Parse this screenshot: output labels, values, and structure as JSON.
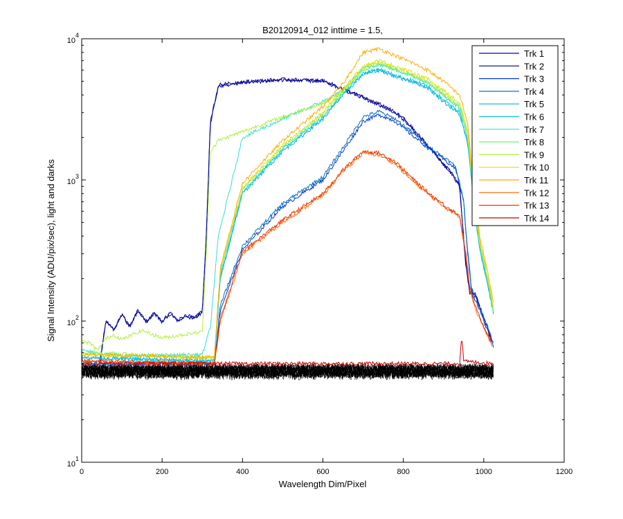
{
  "chart_data": {
    "type": "line",
    "title": "B20120914_012 inttime = 1.5,",
    "xlabel": "Wavelength Dim/Pixel",
    "ylabel": "Signal Intensity (ADU/pix/sec), light and darks",
    "xlim": [
      0,
      1200
    ],
    "ylim": [
      10,
      10000
    ],
    "yscale": "log",
    "x_ticks": [
      "0",
      "200",
      "400",
      "600",
      "800",
      "1000",
      "1200"
    ],
    "y_ticks": [
      {
        "base": "10",
        "exp": "1"
      },
      {
        "base": "10",
        "exp": "2"
      },
      {
        "base": "10",
        "exp": "3"
      },
      {
        "base": "10",
        "exp": "4"
      }
    ],
    "grid": false,
    "legend_position": "top-right",
    "series": [
      {
        "name": "Trk 1",
        "color": "#0000aa",
        "dark": 44,
        "light": [
          [
            45,
            49
          ],
          [
            60,
            100
          ],
          [
            80,
            88
          ],
          [
            100,
            110
          ],
          [
            120,
            92
          ],
          [
            140,
            118
          ],
          [
            160,
            100
          ],
          [
            180,
            112
          ],
          [
            200,
            100
          ],
          [
            220,
            114
          ],
          [
            240,
            100
          ],
          [
            260,
            110
          ],
          [
            280,
            106
          ],
          [
            300,
            115
          ],
          [
            310,
            400
          ],
          [
            320,
            2500
          ],
          [
            340,
            4600
          ],
          [
            400,
            4900
          ],
          [
            500,
            5100
          ],
          [
            600,
            5000
          ],
          [
            620,
            4700
          ],
          [
            640,
            4500
          ],
          [
            700,
            3800
          ],
          [
            760,
            3200
          ],
          [
            800,
            2700
          ],
          [
            840,
            2000
          ],
          [
            880,
            1500
          ],
          [
            920,
            1100
          ],
          [
            940,
            900
          ],
          [
            955,
            250
          ],
          [
            965,
            160
          ],
          [
            980,
            150
          ],
          [
            1000,
            100
          ],
          [
            1020,
            72
          ]
        ]
      },
      {
        "name": "Trk 2",
        "color": "#000090",
        "dark": 43,
        "light": [
          [
            45,
            49
          ],
          [
            60,
            102
          ],
          [
            80,
            86
          ],
          [
            100,
            112
          ],
          [
            120,
            90
          ],
          [
            140,
            120
          ],
          [
            160,
            98
          ],
          [
            180,
            114
          ],
          [
            200,
            98
          ],
          [
            220,
            112
          ],
          [
            240,
            102
          ],
          [
            260,
            108
          ],
          [
            280,
            104
          ],
          [
            300,
            118
          ],
          [
            310,
            420
          ],
          [
            320,
            2600
          ],
          [
            340,
            4700
          ],
          [
            400,
            4950
          ],
          [
            500,
            5150
          ],
          [
            600,
            5050
          ],
          [
            620,
            4800
          ],
          [
            640,
            4550
          ],
          [
            700,
            3850
          ],
          [
            760,
            3250
          ],
          [
            800,
            2750
          ],
          [
            840,
            2050
          ],
          [
            880,
            1520
          ],
          [
            920,
            1120
          ],
          [
            940,
            920
          ],
          [
            955,
            260
          ],
          [
            965,
            165
          ],
          [
            980,
            155
          ],
          [
            1000,
            105
          ],
          [
            1020,
            74
          ]
        ]
      },
      {
        "name": "Trk 3",
        "color": "#0033dd",
        "dark": 44,
        "light": [
          [
            0,
            50
          ],
          [
            330,
            50
          ],
          [
            345,
            120
          ],
          [
            400,
            320
          ],
          [
            500,
            650
          ],
          [
            600,
            1000
          ],
          [
            650,
            1600
          ],
          [
            700,
            2600
          ],
          [
            740,
            2900
          ],
          [
            780,
            2600
          ],
          [
            820,
            2100
          ],
          [
            860,
            1700
          ],
          [
            900,
            1400
          ],
          [
            930,
            1200
          ],
          [
            950,
            700
          ],
          [
            960,
            300
          ],
          [
            970,
            160
          ],
          [
            990,
            120
          ],
          [
            1010,
            90
          ],
          [
            1025,
            65
          ]
        ]
      },
      {
        "name": "Trk 4",
        "color": "#0070c0",
        "dark": 43,
        "light": [
          [
            0,
            50
          ],
          [
            330,
            50
          ],
          [
            345,
            130
          ],
          [
            400,
            340
          ],
          [
            500,
            680
          ],
          [
            600,
            1050
          ],
          [
            650,
            1700
          ],
          [
            700,
            2800
          ],
          [
            740,
            3050
          ],
          [
            780,
            2700
          ],
          [
            820,
            2200
          ],
          [
            860,
            1750
          ],
          [
            900,
            1450
          ],
          [
            930,
            1250
          ],
          [
            950,
            720
          ],
          [
            960,
            310
          ],
          [
            970,
            170
          ],
          [
            990,
            125
          ],
          [
            1010,
            92
          ],
          [
            1025,
            68
          ]
        ]
      },
      {
        "name": "Trk 5",
        "color": "#00aaee",
        "dark": 44,
        "light": [
          [
            0,
            55
          ],
          [
            330,
            52
          ],
          [
            345,
            200
          ],
          [
            400,
            800
          ],
          [
            500,
            1600
          ],
          [
            600,
            2700
          ],
          [
            650,
            4000
          ],
          [
            700,
            5600
          ],
          [
            740,
            6000
          ],
          [
            780,
            5400
          ],
          [
            820,
            5000
          ],
          [
            860,
            4500
          ],
          [
            900,
            3600
          ],
          [
            940,
            2900
          ],
          [
            960,
            1800
          ],
          [
            975,
            700
          ],
          [
            990,
            320
          ],
          [
            1010,
            180
          ],
          [
            1025,
            110
          ]
        ]
      },
      {
        "name": "Trk 6",
        "color": "#00c8d8",
        "dark": 44,
        "light": [
          [
            0,
            55
          ],
          [
            330,
            52
          ],
          [
            345,
            210
          ],
          [
            400,
            820
          ],
          [
            500,
            1650
          ],
          [
            600,
            2800
          ],
          [
            650,
            4100
          ],
          [
            700,
            5700
          ],
          [
            740,
            6100
          ],
          [
            780,
            5500
          ],
          [
            820,
            5100
          ],
          [
            860,
            4600
          ],
          [
            900,
            3700
          ],
          [
            940,
            3000
          ],
          [
            960,
            1900
          ],
          [
            975,
            720
          ],
          [
            990,
            330
          ],
          [
            1010,
            185
          ],
          [
            1025,
            112
          ]
        ]
      },
      {
        "name": "Trk 7",
        "color": "#30e0d0",
        "dark": 45,
        "light": [
          [
            0,
            62
          ],
          [
            100,
            56
          ],
          [
            300,
            58
          ],
          [
            320,
            90
          ],
          [
            340,
            400
          ],
          [
            400,
            2000
          ],
          [
            500,
            2700
          ],
          [
            600,
            3600
          ],
          [
            650,
            4300
          ],
          [
            700,
            6200
          ],
          [
            740,
            6600
          ],
          [
            780,
            6000
          ],
          [
            820,
            5500
          ],
          [
            860,
            4900
          ],
          [
            900,
            4000
          ],
          [
            940,
            3200
          ],
          [
            960,
            2000
          ],
          [
            975,
            750
          ],
          [
            990,
            340
          ],
          [
            1010,
            190
          ],
          [
            1025,
            112
          ]
        ]
      },
      {
        "name": "Trk 8",
        "color": "#70f080",
        "dark": 45,
        "light": [
          [
            0,
            60
          ],
          [
            330,
            55
          ],
          [
            345,
            220
          ],
          [
            400,
            850
          ],
          [
            500,
            1700
          ],
          [
            600,
            2900
          ],
          [
            650,
            4300
          ],
          [
            700,
            6000
          ],
          [
            740,
            6600
          ],
          [
            780,
            6100
          ],
          [
            820,
            5500
          ],
          [
            860,
            4900
          ],
          [
            900,
            4000
          ],
          [
            940,
            3300
          ],
          [
            960,
            2100
          ],
          [
            975,
            780
          ],
          [
            990,
            350
          ],
          [
            1010,
            195
          ],
          [
            1025,
            115
          ]
        ]
      },
      {
        "name": "Trk 9",
        "color": "#b0f040",
        "dark": 45,
        "light": [
          [
            0,
            72
          ],
          [
            20,
            70
          ],
          [
            40,
            62
          ],
          [
            60,
            75
          ],
          [
            80,
            80
          ],
          [
            100,
            74
          ],
          [
            150,
            86
          ],
          [
            200,
            76
          ],
          [
            250,
            80
          ],
          [
            300,
            84
          ],
          [
            310,
            300
          ],
          [
            320,
            1600
          ],
          [
            340,
            1900
          ],
          [
            400,
            2200
          ],
          [
            500,
            2800
          ],
          [
            600,
            3500
          ],
          [
            650,
            4200
          ],
          [
            700,
            6200
          ],
          [
            740,
            6800
          ],
          [
            780,
            6200
          ],
          [
            820,
            5600
          ],
          [
            860,
            5000
          ],
          [
            900,
            4100
          ],
          [
            940,
            3400
          ],
          [
            960,
            2100
          ],
          [
            975,
            800
          ],
          [
            990,
            360
          ],
          [
            1010,
            200
          ],
          [
            1025,
            118
          ]
        ]
      },
      {
        "name": "Trk 10",
        "color": "#e0e000",
        "dark": 45,
        "light": [
          [
            0,
            58
          ],
          [
            330,
            55
          ],
          [
            345,
            230
          ],
          [
            400,
            880
          ],
          [
            500,
            1750
          ],
          [
            600,
            3000
          ],
          [
            650,
            4400
          ],
          [
            700,
            6400
          ],
          [
            740,
            7000
          ],
          [
            780,
            6400
          ],
          [
            820,
            5800
          ],
          [
            860,
            5200
          ],
          [
            900,
            4300
          ],
          [
            940,
            3500
          ],
          [
            960,
            2200
          ],
          [
            975,
            820
          ],
          [
            990,
            370
          ],
          [
            1010,
            205
          ],
          [
            1025,
            120
          ]
        ]
      },
      {
        "name": "Trk 11",
        "color": "#ffaa00",
        "dark": 45,
        "light": [
          [
            0,
            58
          ],
          [
            330,
            55
          ],
          [
            345,
            240
          ],
          [
            400,
            950
          ],
          [
            500,
            1900
          ],
          [
            600,
            3300
          ],
          [
            650,
            4800
          ],
          [
            700,
            8000
          ],
          [
            740,
            8500
          ],
          [
            780,
            7600
          ],
          [
            820,
            6800
          ],
          [
            860,
            6000
          ],
          [
            900,
            5000
          ],
          [
            940,
            4000
          ],
          [
            960,
            2500
          ],
          [
            975,
            900
          ],
          [
            990,
            400
          ],
          [
            1010,
            220
          ],
          [
            1025,
            130
          ]
        ]
      },
      {
        "name": "Trk 12",
        "color": "#ff6600",
        "dark": 45,
        "light": [
          [
            0,
            52
          ],
          [
            330,
            50
          ],
          [
            345,
            100
          ],
          [
            400,
            300
          ],
          [
            500,
            500
          ],
          [
            600,
            780
          ],
          [
            650,
            1150
          ],
          [
            700,
            1550
          ],
          [
            740,
            1500
          ],
          [
            780,
            1300
          ],
          [
            820,
            1000
          ],
          [
            860,
            800
          ],
          [
            900,
            650
          ],
          [
            940,
            550
          ],
          [
            955,
            300
          ],
          [
            965,
            170
          ],
          [
            980,
            120
          ],
          [
            1000,
            90
          ],
          [
            1020,
            68
          ]
        ]
      },
      {
        "name": "Trk 13",
        "color": "#ee3300",
        "dark": 44,
        "light": [
          [
            0,
            52
          ],
          [
            330,
            50
          ],
          [
            345,
            105
          ],
          [
            400,
            310
          ],
          [
            500,
            520
          ],
          [
            600,
            800
          ],
          [
            650,
            1180
          ],
          [
            700,
            1600
          ],
          [
            740,
            1550
          ],
          [
            780,
            1350
          ],
          [
            820,
            1040
          ],
          [
            860,
            820
          ],
          [
            900,
            670
          ],
          [
            940,
            560
          ],
          [
            955,
            310
          ],
          [
            965,
            175
          ],
          [
            980,
            125
          ],
          [
            1000,
            92
          ],
          [
            1020,
            70
          ]
        ]
      },
      {
        "name": "Trk 14",
        "color": "#cc0000",
        "dark": 44,
        "light": [
          [
            0,
            50
          ],
          [
            940,
            50
          ],
          [
            945,
            80
          ],
          [
            950,
            52
          ],
          [
            1025,
            50
          ]
        ]
      }
    ]
  }
}
